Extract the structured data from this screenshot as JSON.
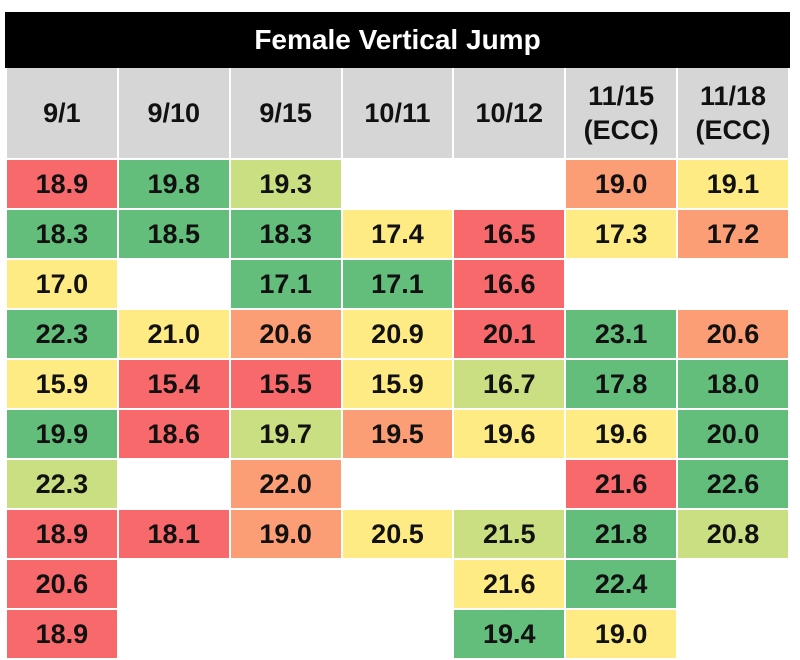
{
  "colors": {
    "title_bg": "#000000",
    "title_fg": "#ffffff",
    "header_bg": "#d6d6d6",
    "empty": "#ffffff",
    "scale": [
      "#f8696b",
      "#fb9d75",
      "#ffeb84",
      "#c9df81",
      "#63be7b"
    ]
  },
  "chart_data": {
    "type": "table",
    "title": "Female Vertical Jump",
    "columns": [
      "9/1",
      "9/10",
      "9/15",
      "10/11",
      "10/12",
      "11/15\n(ECC)",
      "11/18\n(ECC)"
    ],
    "rows": [
      [
        18.9,
        19.8,
        19.3,
        null,
        null,
        19.0,
        19.1
      ],
      [
        18.3,
        18.5,
        18.3,
        17.4,
        16.5,
        17.3,
        17.2
      ],
      [
        17.0,
        null,
        17.1,
        17.1,
        16.6,
        null,
        null
      ],
      [
        22.3,
        21.0,
        20.6,
        20.9,
        20.1,
        23.1,
        20.6
      ],
      [
        15.9,
        15.4,
        15.5,
        15.9,
        16.7,
        17.8,
        18.0
      ],
      [
        19.9,
        18.6,
        19.7,
        19.5,
        19.6,
        19.6,
        20.0
      ],
      [
        22.3,
        null,
        22.0,
        null,
        null,
        21.6,
        22.6
      ],
      [
        18.9,
        18.1,
        19.0,
        20.5,
        21.5,
        21.8,
        20.8
      ],
      [
        20.6,
        null,
        null,
        null,
        21.6,
        22.4,
        null
      ],
      [
        18.9,
        null,
        null,
        null,
        19.4,
        19.0,
        null
      ]
    ],
    "cell_colors": [
      [
        "red",
        "green",
        "light-green",
        "empty",
        "empty",
        "orange",
        "yellow"
      ],
      [
        "green",
        "green",
        "green",
        "yellow",
        "red",
        "yellow",
        "orange"
      ],
      [
        "yellow",
        "empty",
        "green",
        "green",
        "red",
        "empty",
        "empty"
      ],
      [
        "green",
        "yellow",
        "orange",
        "yellow",
        "red",
        "green",
        "orange"
      ],
      [
        "yellow",
        "red",
        "red",
        "yellow",
        "light-green",
        "green",
        "green"
      ],
      [
        "green",
        "red",
        "light-green",
        "orange",
        "yellow",
        "yellow",
        "green"
      ],
      [
        "light-green",
        "empty",
        "orange",
        "empty",
        "empty",
        "red",
        "green"
      ],
      [
        "red",
        "red",
        "orange",
        "yellow",
        "light-green",
        "green",
        "light-green"
      ],
      [
        "red",
        "empty",
        "empty",
        "empty",
        "yellow",
        "green",
        "empty"
      ],
      [
        "red",
        "empty",
        "empty",
        "empty",
        "green",
        "yellow",
        "empty"
      ]
    ]
  }
}
